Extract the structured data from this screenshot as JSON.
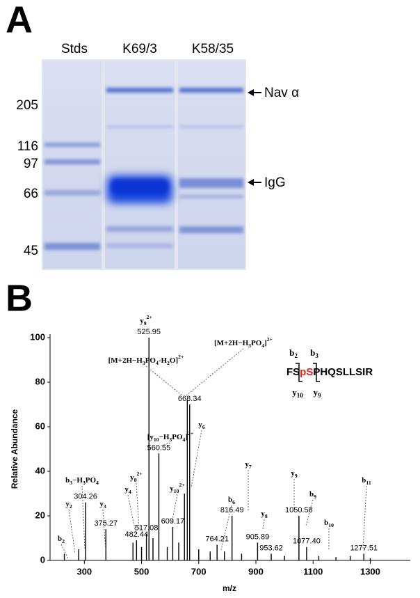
{
  "panel_a": {
    "label": "A",
    "lanes": [
      "Stds",
      "K69/3",
      "K58/35"
    ],
    "markers": [
      "205",
      "116",
      "97",
      "66",
      "45"
    ],
    "annotations": [
      "Nav α",
      "IgG"
    ]
  },
  "chart_data": {
    "type": "spectrum",
    "panel_label": "B",
    "y_label": "Relative Abundance",
    "x_label": "m/z",
    "color": "#000000",
    "xlim": [
      180,
      1440
    ],
    "xticks": [
      300,
      500,
      700,
      900,
      1100,
      1300
    ],
    "ylim": [
      0,
      100
    ],
    "yticks": [
      0,
      20,
      40,
      60,
      80,
      100
    ],
    "peaks": {
      "x": [
        525.95,
        668.34,
        560.55,
        609.17,
        517.08,
        482.44,
        304.26,
        375.27,
        764.21,
        816.49,
        905.89,
        953.62,
        1050.58,
        1077.4,
        1277.51
      ],
      "x_labels": [
        "525.95",
        "668.34",
        "560.55",
        "609.17",
        "517.08",
        "482.44",
        "304.26",
        "375.27",
        "764.21",
        "816.49",
        "905.89",
        "953.62",
        "1050.58",
        "1077.40",
        "1277.51"
      ],
      "values": [
        100,
        70,
        48,
        15,
        12,
        9,
        26,
        14,
        7,
        20,
        8,
        3,
        20,
        6,
        3
      ]
    },
    "minor_peaks": {
      "x": [
        230,
        280,
        470,
        500,
        540,
        590,
        630,
        650,
        660,
        700,
        740,
        790,
        850,
        1000,
        1120,
        1180,
        1230,
        1300
      ],
      "values": [
        3,
        5,
        8,
        6,
        10,
        6,
        8,
        30,
        72,
        5,
        4,
        4,
        3,
        2,
        2,
        1.5,
        2,
        1
      ]
    },
    "ion_labels": [
      [
        {
          "text": "y"
        },
        {
          "sub": "9"
        },
        {
          "sup": "2+"
        }
      ],
      [
        {
          "text": "[M+2H−H"
        },
        {
          "sub": "3"
        },
        {
          "text": "PO"
        },
        {
          "sub": "4"
        },
        {
          "text": "-H"
        },
        {
          "sub": "2"
        },
        {
          "text": "O]"
        },
        {
          "sup": "2+"
        }
      ],
      [
        {
          "text": "[M+2H−H"
        },
        {
          "sub": "3"
        },
        {
          "text": "PO"
        },
        {
          "sub": "4"
        },
        {
          "text": "]"
        },
        {
          "sup": "2+"
        }
      ],
      [
        {
          "text": "[y"
        },
        {
          "sub": "10"
        },
        {
          "text": "−H"
        },
        {
          "sub": "3"
        },
        {
          "text": "PO"
        },
        {
          "sub": "4"
        },
        {
          "text": "]"
        },
        {
          "sup": "2+"
        }
      ],
      [
        {
          "text": "y"
        },
        {
          "sub": "6"
        }
      ],
      [
        {
          "text": "y"
        },
        {
          "sub": "10"
        },
        {
          "sup": "2+"
        }
      ],
      [
        {
          "text": "y"
        },
        {
          "sub": "8"
        },
        {
          "sup": "2+"
        }
      ],
      [
        {
          "text": "y"
        },
        {
          "sub": "4"
        }
      ],
      [
        {
          "text": "b"
        },
        {
          "sub": "3"
        },
        {
          "text": "−H"
        },
        {
          "sub": "3"
        },
        {
          "text": "PO"
        },
        {
          "sub": "4"
        }
      ],
      [
        {
          "text": "y"
        },
        {
          "sub": "2"
        }
      ],
      [
        {
          "text": "y"
        },
        {
          "sub": "3"
        }
      ],
      [
        {
          "text": "b"
        },
        {
          "sub": "2"
        }
      ],
      [
        {
          "text": "b"
        },
        {
          "sub": "6"
        }
      ],
      [
        {
          "text": "y"
        },
        {
          "sub": "7"
        }
      ],
      [
        {
          "text": "y"
        },
        {
          "sub": "8"
        }
      ],
      [
        {
          "text": "y"
        },
        {
          "sub": "9"
        }
      ],
      [
        {
          "text": "b"
        },
        {
          "sub": "9"
        }
      ],
      [
        {
          "text": "b"
        },
        {
          "sub": "10"
        }
      ],
      [
        {
          "text": "b"
        },
        {
          "sub": "11"
        }
      ]
    ],
    "sequence": [
      "FS",
      "pS",
      "PHQSLLSIR"
    ],
    "fragments": [
      [
        {
          "text": "b"
        },
        {
          "sub": "2"
        }
      ],
      [
        {
          "text": "b"
        },
        {
          "sub": "3"
        }
      ],
      [
        {
          "text": "y"
        },
        {
          "sub": "10"
        }
      ],
      [
        {
          "text": "y"
        },
        {
          "sub": "9"
        }
      ]
    ]
  }
}
